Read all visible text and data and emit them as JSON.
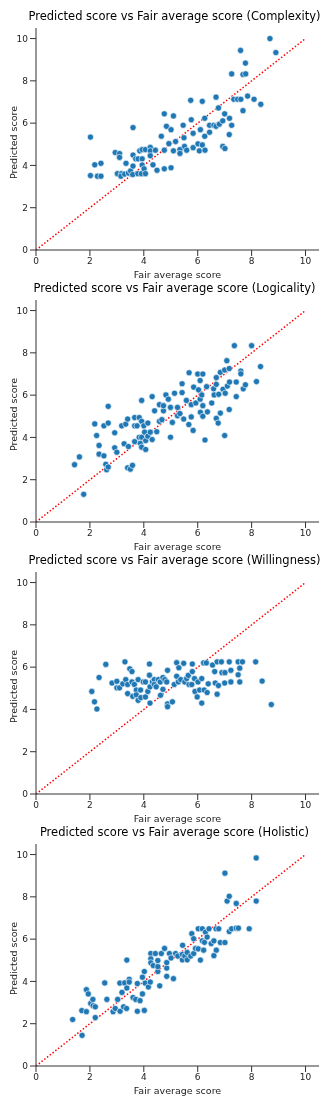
{
  "chart_data": [
    {
      "type": "scatter",
      "title": "Predicted score vs Fair average score (Complexity)",
      "xlabel": "Fair average score",
      "ylabel": "Predicted score",
      "xlim": [
        0,
        10.5
      ],
      "ylim": [
        0,
        10.5
      ],
      "xticks": [
        0,
        2,
        4,
        6,
        8,
        10
      ],
      "yticks": [
        0,
        2,
        4,
        6,
        8,
        10
      ],
      "grid": false,
      "marker": "circle",
      "series": [
        {
          "color": "#1f77b4",
          "x": [
            2.02,
            2.02,
            2.18,
            2.28,
            2.41,
            2.41,
            2.94,
            3.1,
            3.1,
            3.02,
            3.17,
            3.15,
            3.34,
            3.29,
            3.43,
            3.51,
            3.6,
            3.6,
            3.6,
            3.59,
            3.7,
            3.79,
            3.78,
            3.85,
            3.94,
            3.94,
            3.94,
            3.91,
            4.01,
            4.06,
            4.06,
            4.24,
            4.24,
            4.24,
            4.34,
            4.43,
            4.49,
            4.65,
            4.76,
            4.76,
            4.76,
            4.84,
            4.93,
            5.01,
            5.01,
            5.1,
            5.1,
            5.18,
            5.34,
            5.34,
            5.46,
            5.49,
            5.51,
            5.59,
            5.74,
            5.76,
            5.83,
            5.83,
            6.01,
            6.06,
            6.1,
            6.17,
            6.17,
            6.26,
            6.26,
            6.27,
            6.44,
            6.44,
            6.6,
            6.68,
            6.68,
            6.77,
            6.8,
            6.93,
            6.93,
            7.0,
            7.01,
            7.17,
            7.18,
            7.26,
            7.26,
            7.34,
            7.48,
            7.59,
            7.6,
            7.68,
            7.68,
            7.77,
            7.78,
            7.85,
            8.09,
            8.34,
            8.68,
            8.9
          ],
          "values": [
            5.34,
            3.52,
            4.03,
            3.49,
            4.1,
            3.49,
            4.61,
            4.56,
            4.38,
            3.61,
            3.61,
            3.49,
            4.1,
            3.59,
            3.64,
            3.74,
            5.79,
            4.49,
            3.97,
            3.57,
            4.31,
            4.31,
            3.61,
            4.69,
            4.75,
            4.31,
            4.02,
            3.61,
            3.84,
            3.61,
            4.75,
            4.85,
            4.69,
            4.46,
            4.03,
            4.72,
            3.77,
            5.38,
            6.44,
            4.72,
            3.84,
            5.85,
            5.03,
            5.69,
            3.89,
            6.34,
            4.69,
            5.13,
            4.75,
            4.57,
            5.9,
            5.31,
            4.9,
            4.72,
            7.08,
            6.16,
            5.52,
            4.84,
            5.02,
            4.69,
            5.69,
            7.03,
            4.97,
            6.23,
            5.38,
            4.72,
            5.9,
            5.57,
            5.9,
            7.23,
            5.85,
            6.72,
            5.95,
            6.11,
            4.9,
            6.44,
            4.8,
            5.46,
            6.23,
            5.9,
            8.33,
            7.13,
            7.13,
            9.44,
            7.13,
            6.59,
            8.3,
            8.84,
            8.33,
            7.28,
            7.13,
            6.89,
            10.0,
            9.34
          ]
        },
        {
          "type": "line",
          "color": "#ff0000",
          "line_style": "dotted",
          "marker": "none",
          "x": [
            0,
            10
          ],
          "values": [
            0,
            10
          ]
        }
      ]
    },
    {
      "type": "scatter",
      "title": "Predicted score vs Fair average score (Logicality)",
      "xlabel": "Fair average score",
      "ylabel": "Predicted score",
      "xlim": [
        0,
        10.5
      ],
      "ylim": [
        0,
        10.5
      ],
      "xticks": [
        0,
        2,
        4,
        6,
        8,
        10
      ],
      "yticks": [
        0,
        2,
        4,
        6,
        8,
        10
      ],
      "grid": false,
      "marker": "circle",
      "series": [
        {
          "color": "#1f77b4",
          "x": [
            1.43,
            1.61,
            1.77,
            2.18,
            2.25,
            2.34,
            2.34,
            2.52,
            2.52,
            2.59,
            2.62,
            2.68,
            2.68,
            2.68,
            2.92,
            2.92,
            3.0,
            3.18,
            3.27,
            3.33,
            3.4,
            3.43,
            3.4,
            3.5,
            3.58,
            3.66,
            3.66,
            3.66,
            3.75,
            3.83,
            3.83,
            3.87,
            3.92,
            3.92,
            3.92,
            3.92,
            4.0,
            4.03,
            4.07,
            4.07,
            4.15,
            4.15,
            4.24,
            4.31,
            4.31,
            4.4,
            4.48,
            4.58,
            4.58,
            4.67,
            4.73,
            4.73,
            4.82,
            4.91,
            4.99,
            4.99,
            5.06,
            5.14,
            5.25,
            5.25,
            5.34,
            5.42,
            5.42,
            5.48,
            5.58,
            5.67,
            5.68,
            5.76,
            5.76,
            5.83,
            5.85,
            5.93,
            6.0,
            6.03,
            6.09,
            6.09,
            6.1,
            6.15,
            6.19,
            6.19,
            6.19,
            6.27,
            6.33,
            6.36,
            6.52,
            6.59,
            6.61,
            6.69,
            6.69,
            6.69,
            6.76,
            6.78,
            6.84,
            6.84,
            6.94,
            7.0,
            7.0,
            7.02,
            7.1,
            7.08,
            7.17,
            7.17,
            7.18,
            7.36,
            7.43,
            7.43,
            7.6,
            7.6,
            7.69,
            7.77,
            8.0,
            8.18,
            8.33
          ],
          "values": [
            2.71,
            3.08,
            1.31,
            4.64,
            4.09,
            3.62,
            3.21,
            4.55,
            3.13,
            2.73,
            2.47,
            2.6,
            4.68,
            5.47,
            4.22,
            3.51,
            3.3,
            4.55,
            3.7,
            4.63,
            4.87,
            3.57,
            2.56,
            2.5,
            2.68,
            4.94,
            4.55,
            3.8,
            4.55,
            4.94,
            4.01,
            3.72,
            5.75,
            4.76,
            4.01,
            3.54,
            4.55,
            4.25,
            3.85,
            3.43,
            4.68,
            4.06,
            4.25,
            5.93,
            3.9,
            5.26,
            4.27,
            5.55,
            4.76,
            4.84,
            5.26,
            5.5,
            6.01,
            5.81,
            5.42,
            4.01,
            4.71,
            6.09,
            5.42,
            5.03,
            5.13,
            6.12,
            6.54,
            4.87,
            5.75,
            4.61,
            7.06,
            5.55,
            4.97,
            4.33,
            6.38,
            5.63,
            7.0,
            6.25,
            5.81,
            6.69,
            5.19,
            6.01,
            5.0,
            7.0,
            5.5,
            3.88,
            6.4,
            5.21,
            5.63,
            6.3,
            6.01,
            6.51,
            6.83,
            4.9,
            4.68,
            6.04,
            5.15,
            7.08,
            6.28,
            7.19,
            4.09,
            6.09,
            6.43,
            7.63,
            7.26,
            5.32,
            6.62,
            8.34,
            6.62,
            5.93,
            7.14,
            7.01,
            6.3,
            6.49,
            8.34,
            6.64,
            7.35
          ]
        },
        {
          "type": "line",
          "color": "#ff0000",
          "line_style": "dotted",
          "marker": "none",
          "x": [
            0,
            10
          ],
          "values": [
            0,
            10
          ]
        }
      ]
    },
    {
      "type": "scatter",
      "title": "Predicted score vs Fair average score (Willingness)",
      "xlabel": "Fair average score",
      "ylabel": "Predicted score",
      "xlim": [
        0,
        10.5
      ],
      "ylim": [
        0,
        10.5
      ],
      "xticks": [
        0,
        2,
        4,
        6,
        8,
        10
      ],
      "yticks": [
        0,
        2,
        4,
        6,
        8,
        10
      ],
      "grid": false,
      "marker": "circle",
      "series": [
        {
          "color": "#1f77b4",
          "x": [
            2.07,
            2.17,
            2.26,
            2.34,
            2.59,
            2.82,
            3.0,
            3.0,
            3.1,
            3.22,
            3.3,
            3.33,
            3.4,
            3.4,
            3.48,
            3.56,
            3.56,
            3.59,
            3.65,
            3.72,
            3.72,
            3.79,
            3.79,
            3.88,
            3.89,
            3.98,
            4.06,
            4.06,
            4.15,
            4.21,
            4.21,
            4.23,
            4.23,
            4.32,
            4.39,
            4.39,
            4.46,
            4.54,
            4.61,
            4.62,
            4.71,
            4.71,
            4.78,
            4.85,
            4.88,
            4.88,
            4.88,
            5.06,
            5.13,
            5.22,
            5.22,
            5.28,
            5.3,
            5.37,
            5.48,
            5.52,
            5.59,
            5.65,
            5.68,
            5.78,
            5.8,
            5.8,
            5.88,
            5.9,
            5.98,
            6.01,
            6.07,
            6.15,
            6.15,
            6.22,
            6.24,
            6.32,
            6.35,
            6.39,
            6.55,
            6.63,
            6.65,
            6.72,
            6.72,
            6.77,
            6.88,
            6.9,
            7.0,
            7.01,
            7.17,
            7.23,
            7.23,
            7.5,
            7.5,
            7.56,
            7.56,
            7.66,
            8.15,
            8.39,
            8.73
          ],
          "values": [
            4.85,
            4.36,
            4.02,
            5.51,
            6.13,
            5.25,
            5.33,
            5.02,
            5.02,
            5.21,
            6.25,
            5.41,
            4.75,
            5.18,
            5.92,
            5.79,
            5.3,
            4.62,
            5.18,
            4.92,
            4.69,
            5.41,
            4.43,
            4.92,
            4.56,
            5.3,
            5.3,
            4.59,
            4.85,
            6.15,
            5.62,
            4.3,
            5.07,
            5.3,
            5.41,
            5.18,
            5.07,
            5.41,
            5.3,
            4.67,
            5.51,
            4.95,
            5.41,
            5.3,
            5.85,
            4.26,
            4.13,
            4.36,
            5.18,
            6.21,
            5.57,
            5.3,
            5.97,
            5.41,
            6.18,
            5.3,
            5.46,
            5.61,
            5.18,
            5.18,
            6.15,
            5.79,
            5.46,
            4.85,
            4.59,
            5.3,
            4.92,
            5.46,
            4.3,
            6.2,
            4.92,
            6.2,
            4.8,
            5.21,
            6.1,
            5.79,
            5.25,
            6.25,
            4.72,
            5.13,
            6.25,
            5.74,
            5.25,
            5.74,
            6.25,
            5.85,
            5.3,
            6.25,
            5.64,
            5.95,
            5.3,
            6.25,
            6.25,
            5.34,
            4.23
          ]
        },
        {
          "type": "line",
          "color": "#ff0000",
          "line_style": "dotted",
          "marker": "none",
          "x": [
            0,
            10
          ],
          "values": [
            0,
            10
          ]
        }
      ]
    },
    {
      "type": "scatter",
      "title": "Predicted score vs Fair average score (Holistic)",
      "xlabel": "Fair average score",
      "ylabel": "Predicted score",
      "xlim": [
        0,
        10.5
      ],
      "ylim": [
        0,
        10.5
      ],
      "xticks": [
        0,
        2,
        4,
        6,
        8,
        10
      ],
      "yticks": [
        0,
        2,
        4,
        6,
        8,
        10
      ],
      "grid": false,
      "marker": "circle",
      "series": [
        {
          "color": "#1f77b4",
          "x": [
            1.36,
            1.7,
            1.71,
            1.87,
            1.87,
            1.94,
            2.03,
            2.11,
            2.12,
            2.2,
            2.2,
            2.55,
            2.63,
            2.86,
            2.94,
            3.03,
            3.11,
            3.12,
            3.19,
            3.25,
            3.29,
            3.36,
            3.37,
            3.37,
            3.46,
            3.46,
            3.6,
            3.7,
            3.76,
            3.76,
            3.86,
            3.95,
            3.95,
            4.02,
            4.02,
            4.05,
            4.17,
            4.24,
            4.26,
            4.26,
            4.26,
            4.35,
            4.43,
            4.52,
            4.52,
            4.52,
            4.59,
            4.65,
            4.77,
            4.85,
            4.85,
            4.85,
            4.95,
            5.01,
            5.1,
            5.18,
            5.26,
            5.43,
            5.43,
            5.44,
            5.52,
            5.61,
            5.61,
            5.74,
            5.78,
            5.85,
            5.85,
            5.92,
            6.02,
            6.02,
            6.1,
            6.17,
            6.17,
            6.22,
            6.25,
            6.29,
            6.35,
            6.42,
            6.5,
            6.6,
            6.6,
            6.68,
            6.69,
            6.78,
            6.84,
            7.01,
            7.01,
            7.09,
            7.17,
            7.17,
            7.26,
            7.43,
            7.43,
            7.51,
            7.91,
            8.17,
            8.17
          ],
          "values": [
            2.2,
            2.62,
            1.45,
            3.61,
            2.57,
            3.41,
            2.96,
            3.15,
            2.85,
            2.8,
            2.29,
            3.93,
            3.15,
            2.57,
            2.72,
            3.15,
            3.92,
            2.59,
            3.48,
            2.8,
            3.93,
            2.72,
            3.69,
            5.01,
            4.1,
            3.97,
            3.24,
            3.15,
            2.59,
            3.9,
            3.09,
            3.41,
            4.2,
            2.63,
            4.47,
            3.92,
            3.74,
            3.97,
            5.32,
            5.07,
            4.88,
            4.75,
            5.32,
            4.47,
            4.7,
            4.99,
            3.79,
            5.32,
            5.56,
            4.24,
            4.63,
            4.89,
            5.32,
            5.11,
            4.13,
            5.32,
            5.2,
            5.02,
            5.28,
            5.71,
            5.2,
            5.37,
            5.02,
            5.2,
            6.26,
            5.32,
            6.02,
            5.56,
            6.49,
            5.54,
            5.01,
            6.49,
            5.92,
            5.48,
            5.85,
            6.33,
            6.1,
            6.49,
            5.79,
            5.22,
            5.92,
            6.49,
            5.48,
            6.49,
            5.84,
            5.84,
            9.12,
            7.8,
            8.03,
            6.36,
            6.49,
            7.69,
            6.52,
            6.52,
            6.49,
            9.84,
            7.8
          ]
        },
        {
          "type": "line",
          "color": "#ff0000",
          "line_style": "dotted",
          "marker": "none",
          "x": [
            0,
            10
          ],
          "values": [
            0,
            10
          ]
        }
      ]
    }
  ]
}
